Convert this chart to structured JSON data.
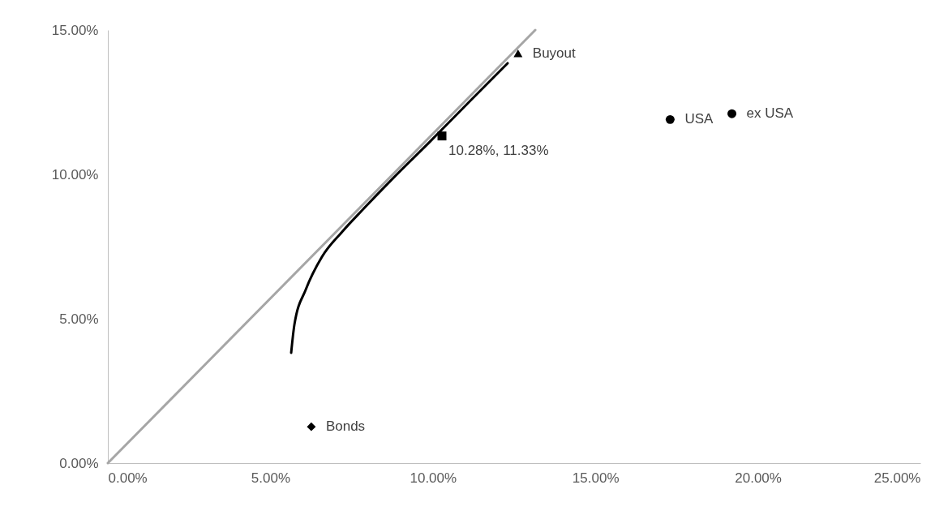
{
  "chart_data": {
    "type": "scatter",
    "xlim": [
      0,
      25
    ],
    "ylim": [
      0,
      15
    ],
    "xticks": [
      {
        "value": 0,
        "label": "0.00%"
      },
      {
        "value": 5,
        "label": "5.00%"
      },
      {
        "value": 10,
        "label": "10.00%"
      },
      {
        "value": 15,
        "label": "15.00%"
      },
      {
        "value": 20,
        "label": "20.00%"
      },
      {
        "value": 25,
        "label": "25.00%"
      }
    ],
    "yticks": [
      {
        "value": 0,
        "label": "0.00%"
      },
      {
        "value": 5,
        "label": "5.00%"
      },
      {
        "value": 10,
        "label": "10.00%"
      },
      {
        "value": 15,
        "label": "15.00%"
      }
    ],
    "grid": false,
    "series": [
      {
        "type": "line",
        "color": "#a6a6a6",
        "x": [
          0,
          13.15
        ],
        "values": [
          0,
          15
        ],
        "marker": "none"
      },
      {
        "type": "line",
        "color": "#000000",
        "x": [
          5.64,
          5.74,
          6.09,
          6.59,
          7.2,
          7.86,
          8.76,
          9.88,
          11.15,
          12.3
        ],
        "values": [
          3.82,
          4.8,
          6.01,
          7.15,
          8.0,
          8.8,
          9.85,
          11.1,
          12.55,
          13.85
        ],
        "marker": "none"
      },
      {
        "name": "Bonds",
        "color": "#000000",
        "x": [
          6.26
        ],
        "values": [
          1.26
        ],
        "marker": "diamond"
      },
      {
        "name": "Buyout",
        "color": "#000000",
        "x": [
          12.62
        ],
        "values": [
          14.19
        ],
        "marker": "triangle"
      },
      {
        "color": "#000000",
        "x": [
          10.28
        ],
        "values": [
          11.33
        ],
        "marker": "square"
      },
      {
        "name": "USA",
        "color": "#000000",
        "x": [
          17.3
        ],
        "values": [
          11.9
        ],
        "marker": "circle"
      },
      {
        "name": "ex USA",
        "color": "#000000",
        "x": [
          19.2
        ],
        "values": [
          12.1
        ],
        "marker": "circle"
      }
    ],
    "annotations": [
      {
        "text": "10.28%, 11.33%",
        "x": 10.28,
        "y": 11.33
      }
    ]
  }
}
